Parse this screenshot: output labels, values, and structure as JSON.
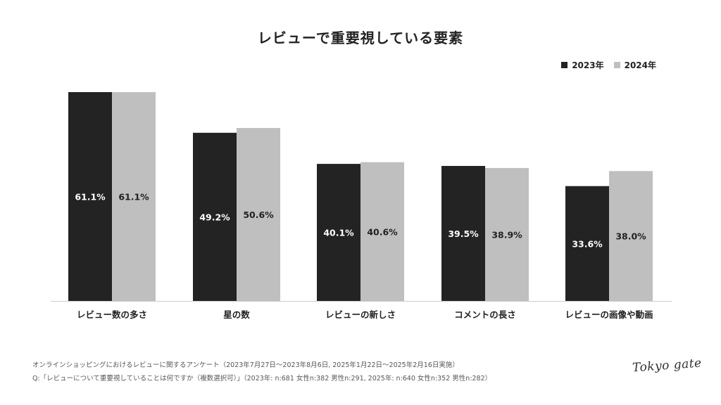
{
  "title": "レビューで重要視している要素",
  "legend": [
    {
      "label": "2023年",
      "color": "#232323"
    },
    {
      "label": "2024年",
      "color": "#bfbfbf"
    }
  ],
  "chart_data": {
    "type": "bar",
    "title": "レビューで重要視している要素",
    "categories": [
      "レビュー数の多さ",
      "星の数",
      "レビューの新しさ",
      "コメントの長さ",
      "レビューの画像や動画"
    ],
    "series": [
      {
        "name": "2023年",
        "values": [
          61.1,
          49.2,
          40.1,
          39.5,
          33.6
        ],
        "labels": [
          "61.1%",
          "49.2%",
          "40.1%",
          "39.5%",
          "33.6%"
        ],
        "color": "#232323",
        "label_color": "#ffffff"
      },
      {
        "name": "2024年",
        "values": [
          61.1,
          50.6,
          40.6,
          38.9,
          38.0
        ],
        "labels": [
          "61.1%",
          "50.6%",
          "40.6%",
          "38.9%",
          "38.0%"
        ],
        "color": "#bfbfbf",
        "label_color": "#222222"
      }
    ],
    "ylim": [
      0,
      61.1
    ],
    "grid": false,
    "legend_position": "top-right",
    "xlabel": "",
    "ylabel": ""
  },
  "footnotes": {
    "line1": "オンラインショッピングにおけるレビューに関するアンケート（2023年7月27日〜2023年8月6日, 2025年1月22日〜2025年2月16日実施）",
    "line2": "Q:「レビューについて重要視していることは何ですか（複数選択可）」（2023年: n:681 女性n:382 男性n:291, 2025年: n:640 女性n:352 男性n:282）"
  },
  "logo": "Tokyo gate"
}
